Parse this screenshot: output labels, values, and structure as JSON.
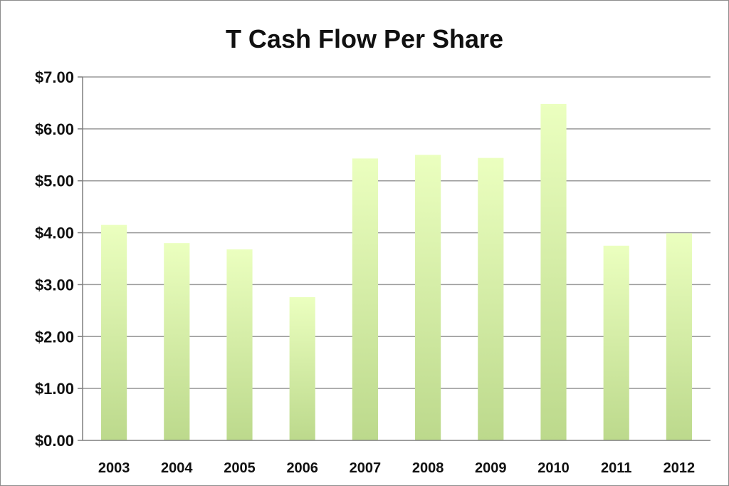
{
  "chart_data": {
    "type": "bar",
    "title": "T Cash Flow Per Share",
    "xlabel": "",
    "ylabel": "",
    "categories": [
      "2003",
      "2004",
      "2005",
      "2006",
      "2007",
      "2008",
      "2009",
      "2010",
      "2011",
      "2012"
    ],
    "values": [
      4.15,
      3.8,
      3.68,
      2.76,
      5.43,
      5.5,
      5.44,
      6.48,
      3.75,
      3.99
    ],
    "ylim": [
      0,
      7
    ],
    "yticks": [
      0,
      1,
      2,
      3,
      4,
      5,
      6,
      7
    ],
    "ytick_labels": [
      "$0.00",
      "$1.00",
      "$2.00",
      "$3.00",
      "$4.00",
      "$5.00",
      "$6.00",
      "$7.00"
    ],
    "grid": true,
    "legend": "none",
    "colors": {
      "bar_top": "#ebffbf",
      "bar_bottom": "#bcd98c",
      "grid": "#9a9a9a",
      "axis": "#7f7f7f"
    }
  }
}
